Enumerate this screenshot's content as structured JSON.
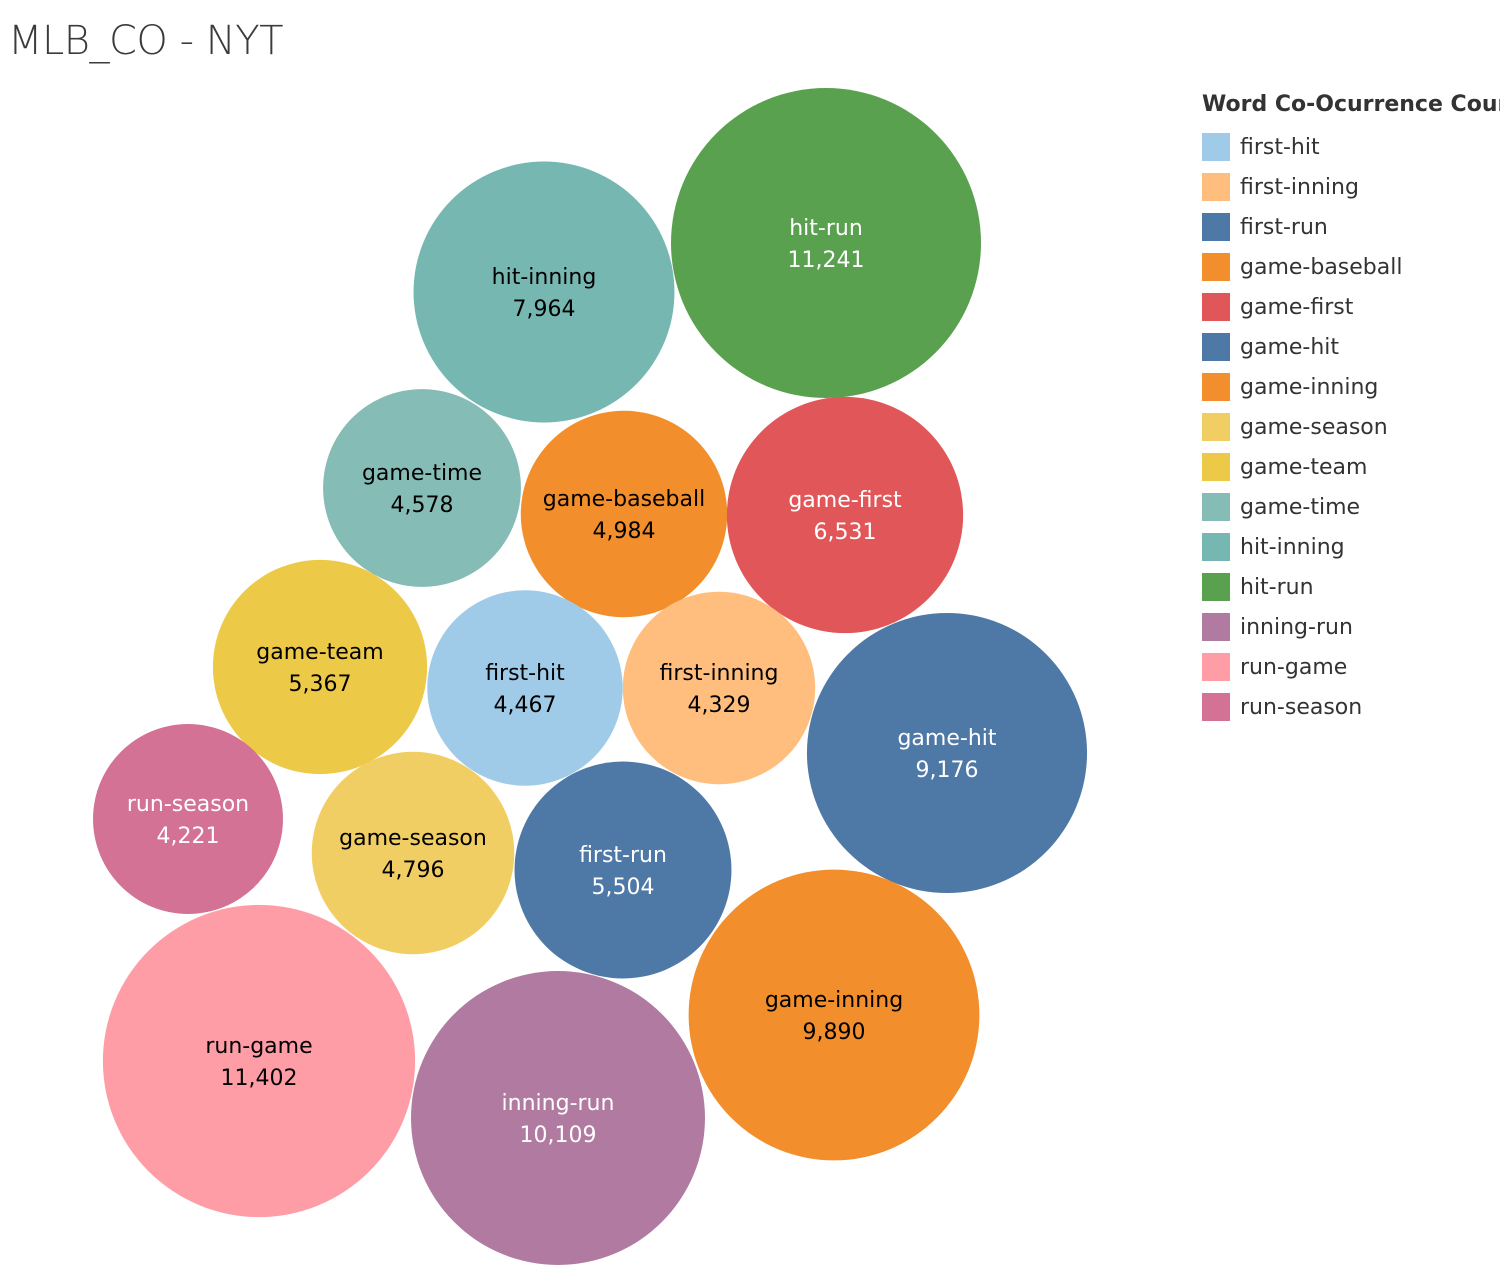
{
  "title": "MLB_CO - NYT",
  "legend": {
    "title": "Word Co-Ocurrence Count",
    "items": [
      {
        "label": "first-hit",
        "color": "#A0CBE8"
      },
      {
        "label": "first-inning",
        "color": "#FFBE7D"
      },
      {
        "label": "first-run",
        "color": "#4E79A7"
      },
      {
        "label": "game-baseball",
        "color": "#F28E2B"
      },
      {
        "label": "game-first",
        "color": "#E15759"
      },
      {
        "label": "game-hit",
        "color": "#4E79A7"
      },
      {
        "label": "game-inning",
        "color": "#F28E2B"
      },
      {
        "label": "game-season",
        "color": "#F1CE63"
      },
      {
        "label": "game-team",
        "color": "#EDC948"
      },
      {
        "label": "game-time",
        "color": "#86BCB6"
      },
      {
        "label": "hit-inning",
        "color": "#76B7B2"
      },
      {
        "label": "hit-run",
        "color": "#59A14F"
      },
      {
        "label": "inning-run",
        "color": "#B07AA1"
      },
      {
        "label": "run-game",
        "color": "#FF9DA7"
      },
      {
        "label": "run-season",
        "color": "#D37295"
      }
    ]
  },
  "chart_data": {
    "type": "bubble",
    "title": "MLB_CO - NYT",
    "legend_title": "Word Co-Ocurrence Count",
    "legend_placement": "right",
    "series": [
      {
        "name": "hit-run",
        "value": 11241,
        "value_label": "11,241",
        "color": "#59A14F",
        "text_color": "#ffffff"
      },
      {
        "name": "hit-inning",
        "value": 7964,
        "value_label": "7,964",
        "color": "#76B7B2",
        "text_color": "#000000"
      },
      {
        "name": "game-time",
        "value": 4578,
        "value_label": "4,578",
        "color": "#86BCB6",
        "text_color": "#000000"
      },
      {
        "name": "game-baseball",
        "value": 4984,
        "value_label": "4,984",
        "color": "#F28E2B",
        "text_color": "#000000"
      },
      {
        "name": "game-first",
        "value": 6531,
        "value_label": "6,531",
        "color": "#E15759",
        "text_color": "#ffffff"
      },
      {
        "name": "game-team",
        "value": 5367,
        "value_label": "5,367",
        "color": "#EDC948",
        "text_color": "#000000"
      },
      {
        "name": "first-hit",
        "value": 4467,
        "value_label": "4,467",
        "color": "#A0CBE8",
        "text_color": "#000000"
      },
      {
        "name": "first-inning",
        "value": 4329,
        "value_label": "4,329",
        "color": "#FFBE7D",
        "text_color": "#000000"
      },
      {
        "name": "game-hit",
        "value": 9176,
        "value_label": "9,176",
        "color": "#4E79A7",
        "text_color": "#ffffff"
      },
      {
        "name": "run-season",
        "value": 4221,
        "value_label": "4,221",
        "color": "#D37295",
        "text_color": "#ffffff"
      },
      {
        "name": "game-season",
        "value": 4796,
        "value_label": "4,796",
        "color": "#F1CE63",
        "text_color": "#000000"
      },
      {
        "name": "first-run",
        "value": 5504,
        "value_label": "5,504",
        "color": "#4E79A7",
        "text_color": "#ffffff"
      },
      {
        "name": "game-inning",
        "value": 9890,
        "value_label": "9,890",
        "color": "#F28E2B",
        "text_color": "#000000"
      },
      {
        "name": "run-game",
        "value": 11402,
        "value_label": "11,402",
        "color": "#FF9DA7",
        "text_color": "#000000"
      },
      {
        "name": "inning-run",
        "value": 10109,
        "value_label": "10,109",
        "color": "#B07AA1",
        "text_color": "#ffffff"
      }
    ]
  }
}
